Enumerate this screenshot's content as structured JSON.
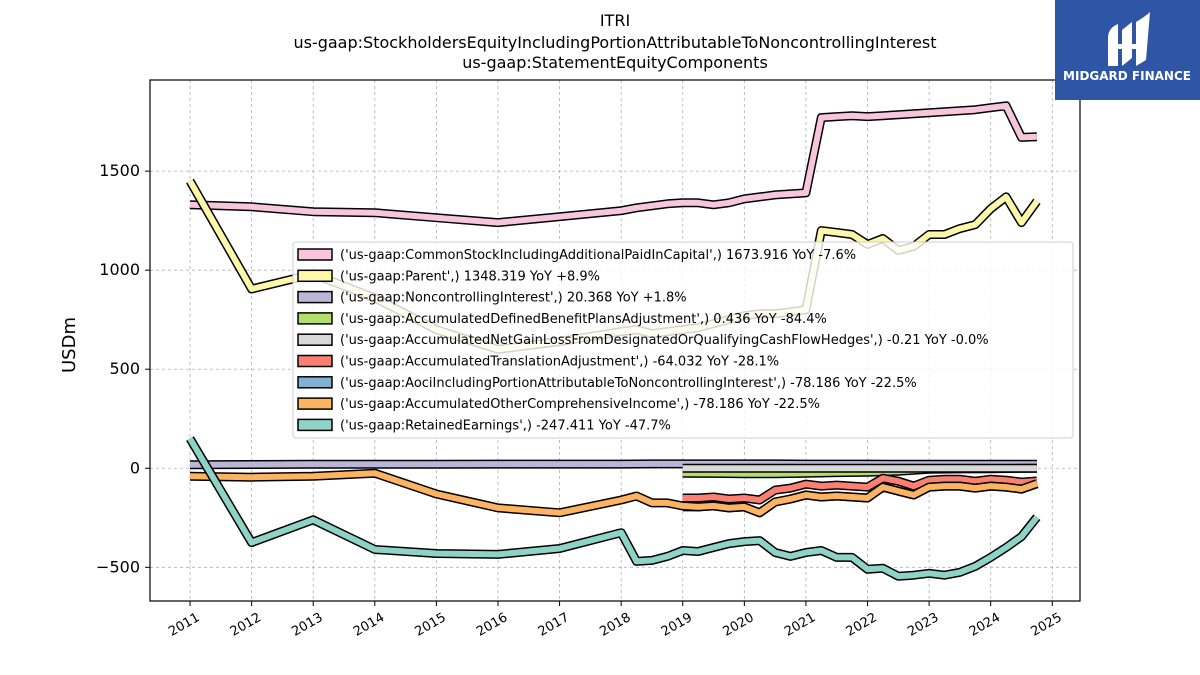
{
  "chart_data": {
    "type": "line",
    "title": [
      "ITRI",
      "us-gaap:StockholdersEquityIncludingPortionAttributableToNoncontrollingInterest",
      "us-gaap:StatementEquityComponents"
    ],
    "xlabel": "",
    "ylabel": "USDm",
    "xlim": [
      2010.35,
      2025.45
    ],
    "ylim": [
      -670,
      1960
    ],
    "xticks": [
      "2011",
      "2012",
      "2013",
      "2014",
      "2015",
      "2016",
      "2017",
      "2018",
      "2019",
      "2020",
      "2021",
      "2022",
      "2023",
      "2024",
      "2025"
    ],
    "yticks": [
      -500,
      0,
      500,
      1000,
      1500
    ],
    "ytick_labels": [
      "−500",
      "0",
      "500",
      "1000",
      "1500"
    ],
    "grid": true,
    "legend_position": "center-right",
    "series": [
      {
        "name": "('us-gaap:CommonStockIncludingAdditionalPaidInCapital',) 1673.916 YoY -7.6%",
        "color": "#f7c6dd",
        "x": [
          2011.0,
          2012.0,
          2013.0,
          2014.0,
          2015.0,
          2016.0,
          2017.0,
          2018.0,
          2018.25,
          2018.5,
          2018.75,
          2019.0,
          2019.25,
          2019.5,
          2019.75,
          2020.0,
          2020.25,
          2020.5,
          2020.75,
          2021.0,
          2021.25,
          2021.5,
          2021.75,
          2022.0,
          2022.25,
          2022.5,
          2022.75,
          2023.0,
          2023.25,
          2023.5,
          2023.75,
          2024.0,
          2024.25,
          2024.5,
          2024.75
        ],
        "y": [
          1330,
          1320,
          1295,
          1290,
          1265,
          1240,
          1270,
          1300,
          1315,
          1325,
          1335,
          1340,
          1340,
          1330,
          1340,
          1360,
          1370,
          1380,
          1385,
          1390,
          1770,
          1775,
          1780,
          1775,
          1780,
          1785,
          1790,
          1795,
          1800,
          1805,
          1810,
          1820,
          1830,
          1670,
          1674
        ]
      },
      {
        "name": "('us-gaap:Parent',) 1348.319 YoY +8.9%",
        "color": "#fdf7a8",
        "x": [
          2011.0,
          2012.0,
          2013.0,
          2014.0,
          2015.0,
          2016.0,
          2017.0,
          2018.0,
          2018.25,
          2018.5,
          2018.75,
          2019.0,
          2019.25,
          2019.5,
          2019.75,
          2020.0,
          2020.25,
          2020.5,
          2020.75,
          2021.0,
          2021.25,
          2021.5,
          2021.75,
          2022.0,
          2022.25,
          2022.5,
          2022.75,
          2023.0,
          2023.25,
          2023.5,
          2023.75,
          2024.0,
          2024.25,
          2024.5,
          2024.75
        ],
        "y": [
          1450,
          905,
          980,
          860,
          700,
          600,
          640,
          690,
          700,
          680,
          690,
          700,
          710,
          730,
          750,
          770,
          780,
          780,
          790,
          800,
          1200,
          1190,
          1180,
          1130,
          1160,
          1100,
          1120,
          1180,
          1180,
          1210,
          1230,
          1310,
          1370,
          1240,
          1348
        ]
      },
      {
        "name": "('us-gaap:NoncontrollingInterest',) 20.368 YoY +1.8%",
        "color": "#bbb6d8",
        "x": [
          2011.0,
          2012.0,
          2013.0,
          2014.0,
          2015.0,
          2016.0,
          2017.0,
          2018.0,
          2018.5,
          2019.0,
          2019.5,
          2020.0,
          2020.5,
          2021.0,
          2021.5,
          2022.0,
          2022.5,
          2023.0,
          2023.5,
          2024.0,
          2024.75
        ],
        "y": [
          18,
          19,
          20,
          20,
          20,
          21,
          21,
          21,
          22,
          22,
          22,
          22,
          22,
          21,
          21,
          21,
          20,
          20,
          20,
          20,
          20.368
        ]
      },
      {
        "name": "('us-gaap:AccumulatedDefinedBenefitPlansAdjustment',) 0.436 YoY -84.4%",
        "color": "#b3de69",
        "x": [
          2019.0,
          2019.5,
          2020.0,
          2020.5,
          2021.0,
          2021.5,
          2022.0,
          2022.5,
          2023.0,
          2023.5,
          2024.0,
          2024.75
        ],
        "y": [
          -25,
          -26,
          -28,
          -28,
          -25,
          -22,
          -20,
          -15,
          -5,
          -3,
          -2,
          0.436
        ]
      },
      {
        "name": "('us-gaap:AccumulatedNetGainLossFromDesignatedOrQualifyingCashFlowHedges',) -0.21 YoY -0.0%",
        "color": "#d9d9d9",
        "x": [
          2019.0,
          2019.5,
          2020.0,
          2020.5,
          2021.0,
          2021.5,
          2022.0,
          2022.5,
          2023.0,
          2023.5,
          2024.0,
          2024.75
        ],
        "y": [
          0,
          0,
          0,
          0,
          0,
          0,
          0,
          0,
          0,
          0,
          0,
          -0.21
        ]
      },
      {
        "name": "('us-gaap:AccumulatedTranslationAdjustment',) -64.032 YoY -28.1%",
        "color": "#fb8072",
        "x": [
          2019.0,
          2019.25,
          2019.5,
          2019.75,
          2020.0,
          2020.25,
          2020.5,
          2020.75,
          2021.0,
          2021.25,
          2021.5,
          2021.75,
          2022.0,
          2022.25,
          2022.5,
          2022.75,
          2023.0,
          2023.25,
          2023.5,
          2023.75,
          2024.0,
          2024.25,
          2024.5,
          2024.75
        ],
        "y": [
          -150,
          -150,
          -145,
          -155,
          -150,
          -160,
          -110,
          -100,
          -80,
          -90,
          -85,
          -90,
          -95,
          -50,
          -65,
          -90,
          -60,
          -55,
          -55,
          -65,
          -55,
          -60,
          -70,
          -64
        ]
      },
      {
        "name": "('us-gaap:AociIncludingPortionAttributableToNoncontrollingInterest',) -78.186 YoY -22.5%",
        "color": "#80b1d3",
        "x": [
          2019.0,
          2019.25,
          2019.5,
          2019.75,
          2020.0,
          2020.25,
          2020.5,
          2020.75,
          2021.0,
          2021.25,
          2021.5,
          2021.75,
          2022.0,
          2022.25,
          2022.5,
          2022.75,
          2023.0,
          2023.25,
          2023.5,
          2023.75,
          2024.0,
          2024.25,
          2024.5,
          2024.75
        ],
        "y": [
          -195,
          -195,
          -190,
          -200,
          -195,
          -225,
          -170,
          -155,
          -135,
          -145,
          -140,
          -145,
          -150,
          -95,
          -115,
          -135,
          -95,
          -90,
          -90,
          -100,
          -90,
          -95,
          -105,
          -78
        ]
      },
      {
        "name": "('us-gaap:AccumulatedOtherComprehensiveIncome',) -78.186 YoY -22.5%",
        "color": "#fdb462",
        "x": [
          2011.0,
          2012.0,
          2013.0,
          2014.0,
          2015.0,
          2016.0,
          2017.0,
          2018.0,
          2018.25,
          2018.5,
          2018.75,
          2019.0,
          2019.25,
          2019.5,
          2019.75,
          2020.0,
          2020.25,
          2020.5,
          2020.75,
          2021.0,
          2021.25,
          2021.5,
          2021.75,
          2022.0,
          2022.25,
          2022.5,
          2022.75,
          2023.0,
          2023.25,
          2023.5,
          2023.75,
          2024.0,
          2024.25,
          2024.5,
          2024.75
        ],
        "y": [
          -40,
          -45,
          -40,
          -25,
          -130,
          -200,
          -225,
          -160,
          -140,
          -175,
          -175,
          -190,
          -195,
          -190,
          -200,
          -195,
          -225,
          -170,
          -155,
          -135,
          -145,
          -140,
          -145,
          -150,
          -95,
          -115,
          -135,
          -95,
          -90,
          -90,
          -100,
          -90,
          -95,
          -105,
          -78
        ]
      },
      {
        "name": "('us-gaap:RetainedEarnings',) -247.411 YoY -47.7%",
        "color": "#8dd3c7",
        "x": [
          2011.0,
          2012.0,
          2013.0,
          2014.0,
          2015.0,
          2016.0,
          2017.0,
          2018.0,
          2018.25,
          2018.5,
          2018.75,
          2019.0,
          2019.25,
          2019.5,
          2019.75,
          2020.0,
          2020.25,
          2020.5,
          2020.75,
          2021.0,
          2021.25,
          2021.5,
          2021.75,
          2022.0,
          2022.25,
          2022.5,
          2022.75,
          2023.0,
          2023.25,
          2023.5,
          2023.75,
          2024.0,
          2024.25,
          2024.5,
          2024.75
        ],
        "y": [
          150,
          -375,
          -260,
          -410,
          -430,
          -435,
          -405,
          -325,
          -470,
          -465,
          -445,
          -415,
          -420,
          -400,
          -380,
          -370,
          -365,
          -425,
          -445,
          -425,
          -415,
          -450,
          -450,
          -510,
          -505,
          -545,
          -540,
          -530,
          -540,
          -525,
          -495,
          -450,
          -400,
          -345,
          -247
        ]
      }
    ]
  },
  "logo": {
    "text": "MIDGARD FINANCE",
    "background": "#2f56a6"
  }
}
